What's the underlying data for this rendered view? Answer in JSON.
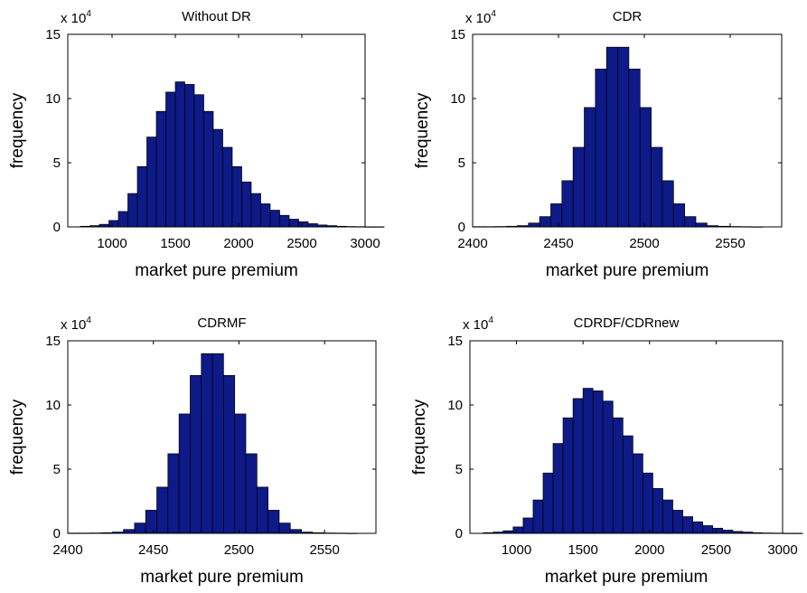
{
  "colors": {
    "bar_fill": "#0d1a87",
    "bar_edge": "#000000",
    "axes": "#000000",
    "background": "#ffffff"
  },
  "chart_data": [
    {
      "type": "bar",
      "title": "Without DR",
      "xlabel": "market pure premium",
      "ylabel": "frequency",
      "y_multiplier": "x 10",
      "y_multiplier_exp": "4",
      "xlim": [
        650,
        3000
      ],
      "ylim": [
        0,
        15
      ],
      "xticks": [
        1000,
        1500,
        2000,
        2500,
        3000
      ],
      "yticks": [
        0,
        5,
        10,
        15
      ],
      "bin_start": 750,
      "bin_width": 75,
      "values": [
        0.05,
        0.1,
        0.2,
        0.5,
        1.2,
        2.6,
        4.7,
        7.0,
        9.0,
        10.5,
        11.3,
        11.1,
        10.3,
        9.0,
        7.6,
        6.2,
        4.7,
        3.5,
        2.6,
        1.8,
        1.3,
        0.9,
        0.6,
        0.4,
        0.25,
        0.15,
        0.1,
        0.05,
        0.03,
        0.02,
        0.01,
        0.01
      ]
    },
    {
      "type": "bar",
      "title": "CDR",
      "xlabel": "market pure premium",
      "ylabel": "frequency",
      "y_multiplier": "x 10",
      "y_multiplier_exp": "4",
      "xlim": [
        2400,
        2580
      ],
      "ylim": [
        0,
        15
      ],
      "xticks": [
        2400,
        2450,
        2500,
        2550
      ],
      "yticks": [
        0,
        5,
        10,
        15
      ],
      "bin_start": 2400,
      "bin_width": 6.5,
      "values": [
        0.02,
        0.02,
        0.03,
        0.05,
        0.1,
        0.3,
        0.8,
        1.8,
        3.6,
        6.2,
        9.3,
        12.3,
        14.0,
        14.0,
        12.3,
        9.3,
        6.2,
        3.6,
        1.8,
        0.8,
        0.3,
        0.1,
        0.05,
        0.03,
        0.02,
        0.01
      ]
    },
    {
      "type": "bar",
      "title": "CDRMF",
      "xlabel": "market pure premium",
      "ylabel": "frequency",
      "y_multiplier": "x 10",
      "y_multiplier_exp": "4",
      "xlim": [
        2400,
        2580
      ],
      "ylim": [
        0,
        15
      ],
      "xticks": [
        2400,
        2450,
        2500,
        2550
      ],
      "yticks": [
        0,
        5,
        10,
        15
      ],
      "bin_start": 2400,
      "bin_width": 6.5,
      "values": [
        0.02,
        0.02,
        0.03,
        0.05,
        0.1,
        0.3,
        0.8,
        1.8,
        3.6,
        6.2,
        9.3,
        12.3,
        14.0,
        14.0,
        12.3,
        9.3,
        6.2,
        3.6,
        1.8,
        0.8,
        0.3,
        0.1,
        0.05,
        0.03,
        0.02,
        0.01
      ]
    },
    {
      "type": "bar",
      "title": "CDRDF/CDRnew",
      "xlabel": "market pure premium",
      "ylabel": "frequency",
      "y_multiplier": "x 10",
      "y_multiplier_exp": "4",
      "xlim": [
        650,
        3000
      ],
      "ylim": [
        0,
        15
      ],
      "xticks": [
        1000,
        1500,
        2000,
        2500,
        3000
      ],
      "yticks": [
        0,
        5,
        10,
        15
      ],
      "bin_start": 750,
      "bin_width": 75,
      "values": [
        0.05,
        0.1,
        0.2,
        0.5,
        1.2,
        2.6,
        4.7,
        7.0,
        9.0,
        10.5,
        11.3,
        11.1,
        10.3,
        9.0,
        7.6,
        6.2,
        4.7,
        3.5,
        2.6,
        1.8,
        1.3,
        0.9,
        0.6,
        0.4,
        0.25,
        0.15,
        0.1,
        0.05,
        0.03,
        0.02,
        0.01,
        0.01
      ]
    }
  ]
}
